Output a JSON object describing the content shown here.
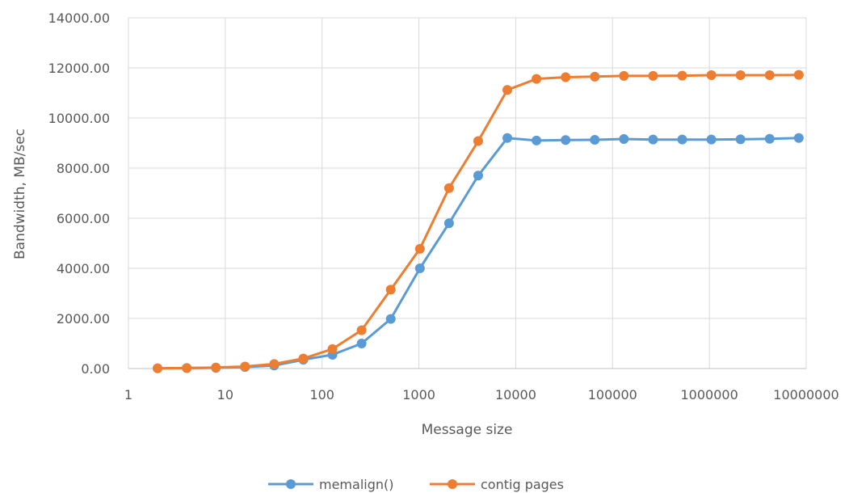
{
  "chart_data": {
    "type": "line",
    "title": "",
    "xlabel": "Message size",
    "ylabel": "Bandwidth, MB/sec",
    "x_scale": "log",
    "xlim": [
      1,
      10000000
    ],
    "ylim": [
      0,
      14000
    ],
    "x_ticks": [
      "1",
      "10",
      "100",
      "1000",
      "10000",
      "100000",
      "1000000",
      "10000000"
    ],
    "y_ticks": [
      "0.00",
      "2000.00",
      "4000.00",
      "6000.00",
      "8000.00",
      "10000.00",
      "12000.00",
      "14000.00"
    ],
    "grid": true,
    "legend_position": "bottom",
    "x": [
      2,
      4,
      8,
      16,
      32,
      64,
      128,
      256,
      512,
      1024,
      2048,
      4096,
      8192,
      16384,
      32768,
      65536,
      131072,
      262144,
      524288,
      1048576,
      2097152,
      4194304,
      8388608
    ],
    "series": [
      {
        "name": "memalign()",
        "color": "#5b9bd5",
        "values": [
          10,
          20,
          30,
          60,
          120,
          350,
          550,
          1000,
          1980,
          4000,
          5800,
          7700,
          9200,
          9100,
          9120,
          9130,
          9160,
          9140,
          9140,
          9140,
          9150,
          9170,
          9200
        ]
      },
      {
        "name": "contig pages",
        "color": "#ed7d31",
        "values": [
          10,
          20,
          40,
          80,
          180,
          400,
          780,
          1530,
          3150,
          4780,
          7200,
          9080,
          11120,
          11560,
          11630,
          11650,
          11680,
          11680,
          11690,
          11710,
          11710,
          11710,
          11720
        ]
      }
    ]
  }
}
